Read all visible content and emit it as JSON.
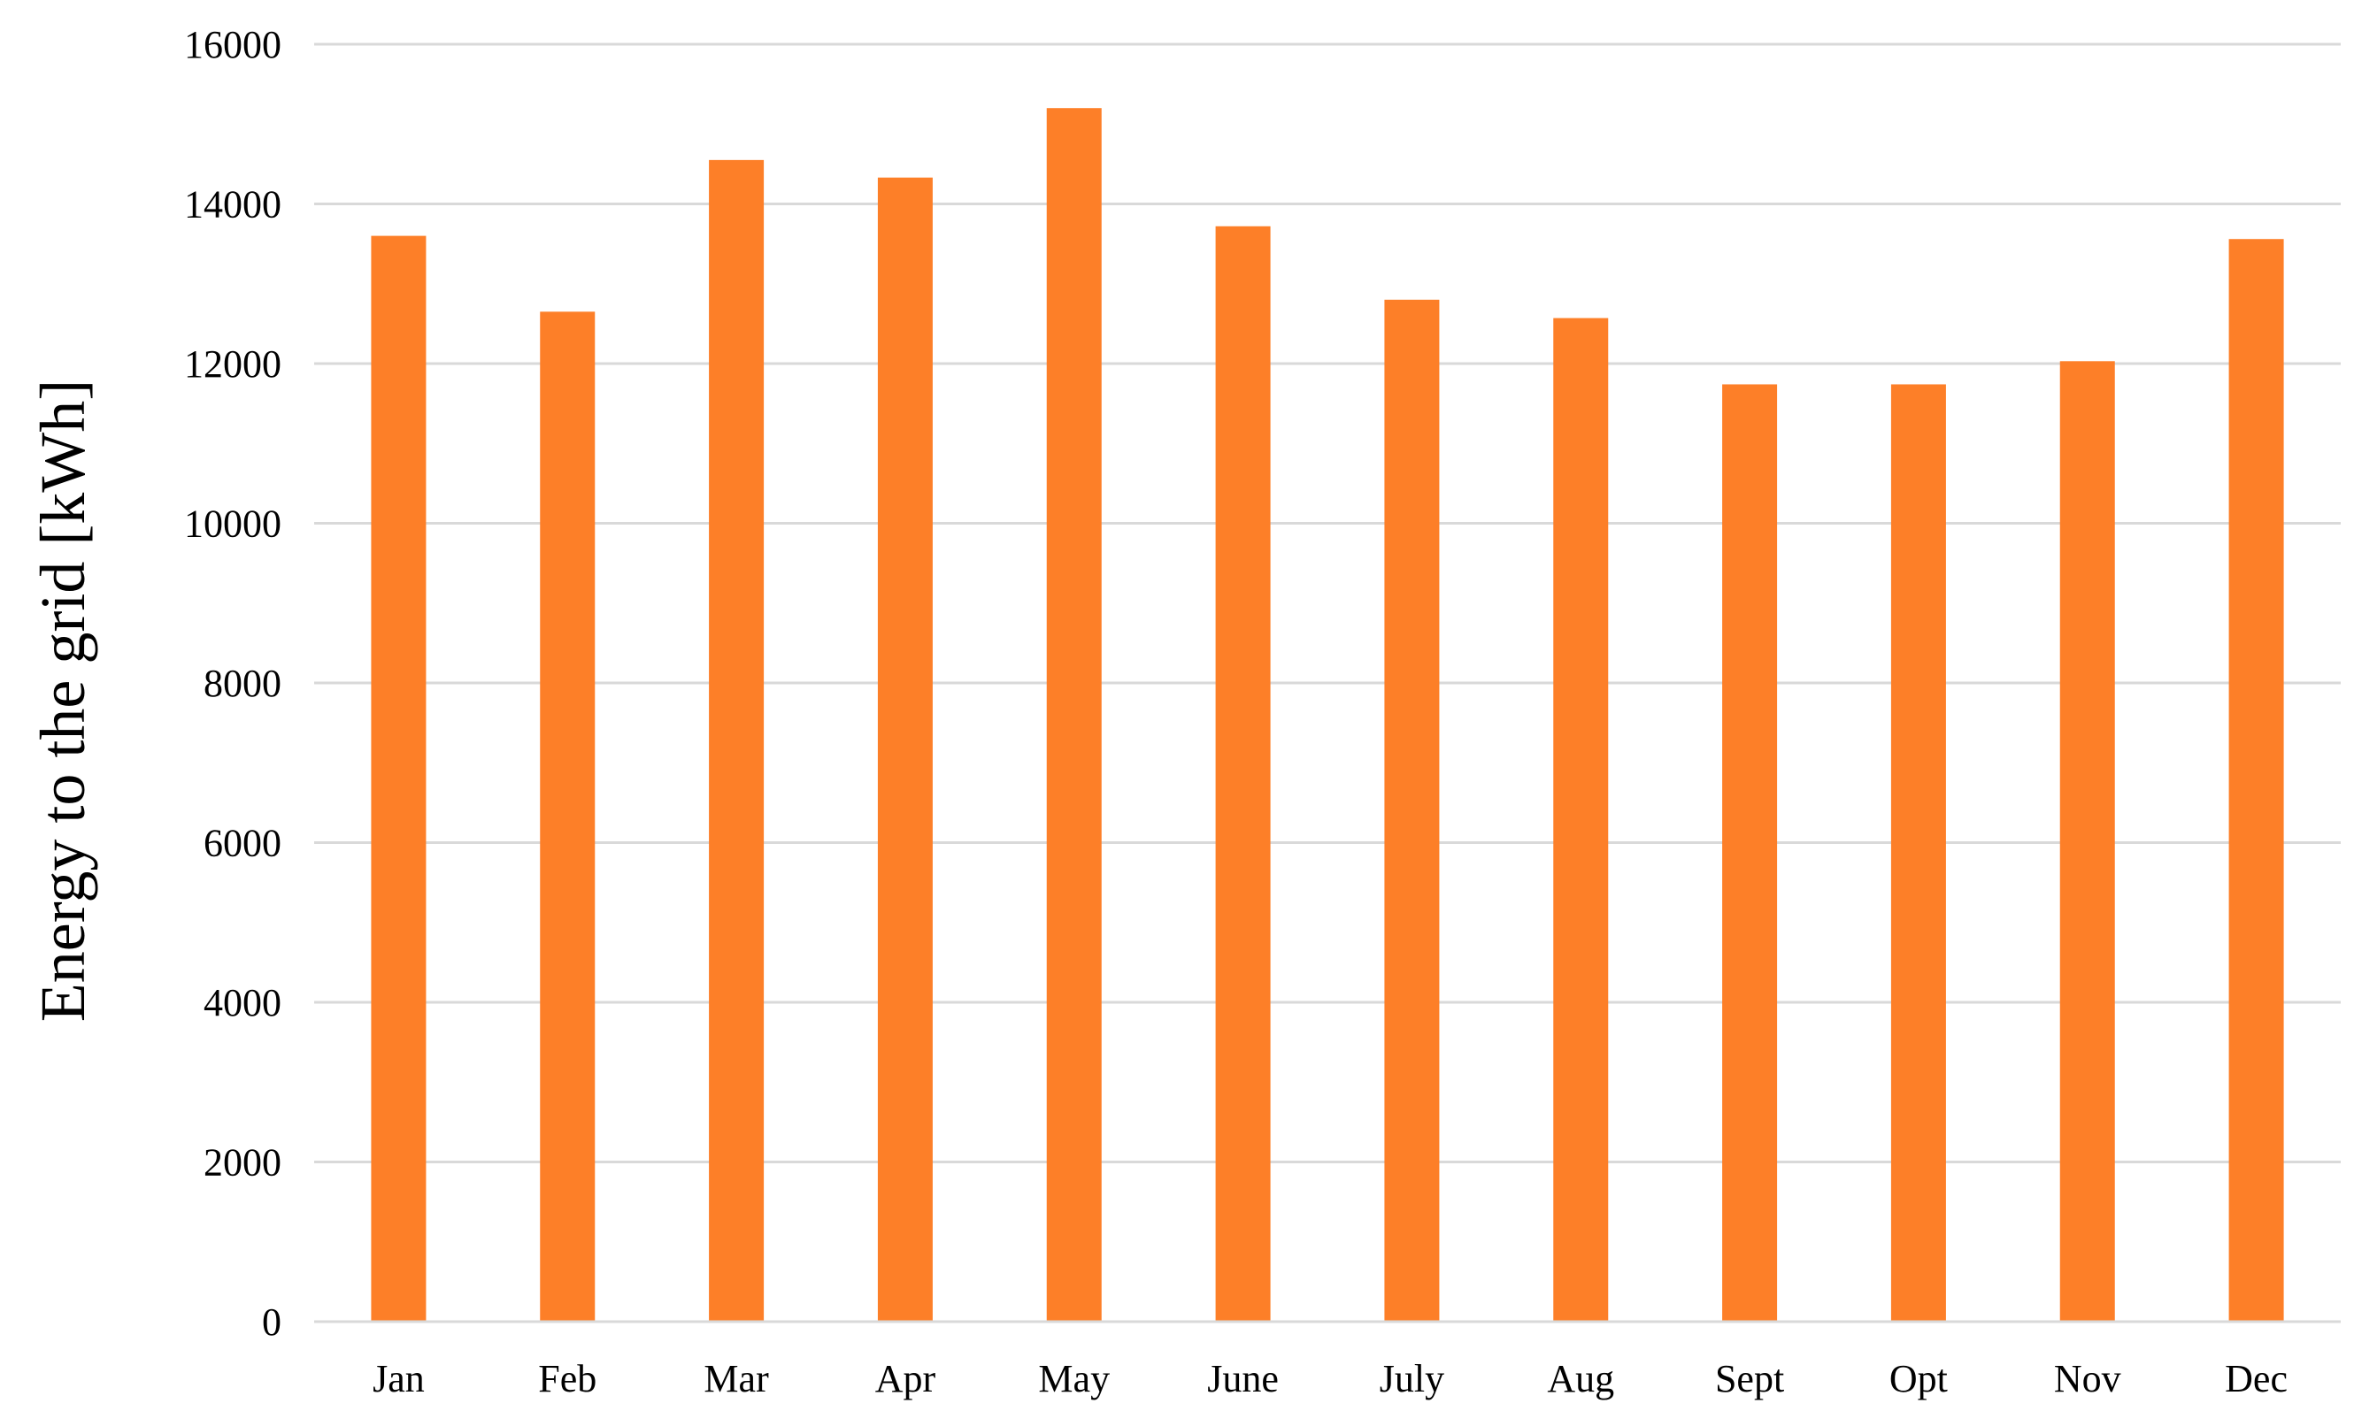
{
  "chart_data": {
    "type": "bar",
    "title": "",
    "xlabel": "",
    "ylabel": "Energy to the grid [kWh]",
    "categories": [
      "Jan",
      "Feb",
      "Mar",
      "Apr",
      "May",
      "June",
      "July",
      "Aug",
      "Sept",
      "Opt",
      "Nov",
      "Dec"
    ],
    "values": [
      13600,
      12650,
      14550,
      14330,
      15200,
      13720,
      12800,
      12570,
      11740,
      11740,
      12030,
      13560
    ],
    "ylim": [
      0,
      16000
    ],
    "yticks": [
      "0",
      "2000",
      "4000",
      "6000",
      "8000",
      "10000",
      "12000",
      "14000",
      "16000"
    ],
    "grid": true,
    "legend": "none",
    "colors": {
      "bar": "#fd7f28",
      "grid": "#d9d9d9",
      "text": "#000000"
    }
  }
}
